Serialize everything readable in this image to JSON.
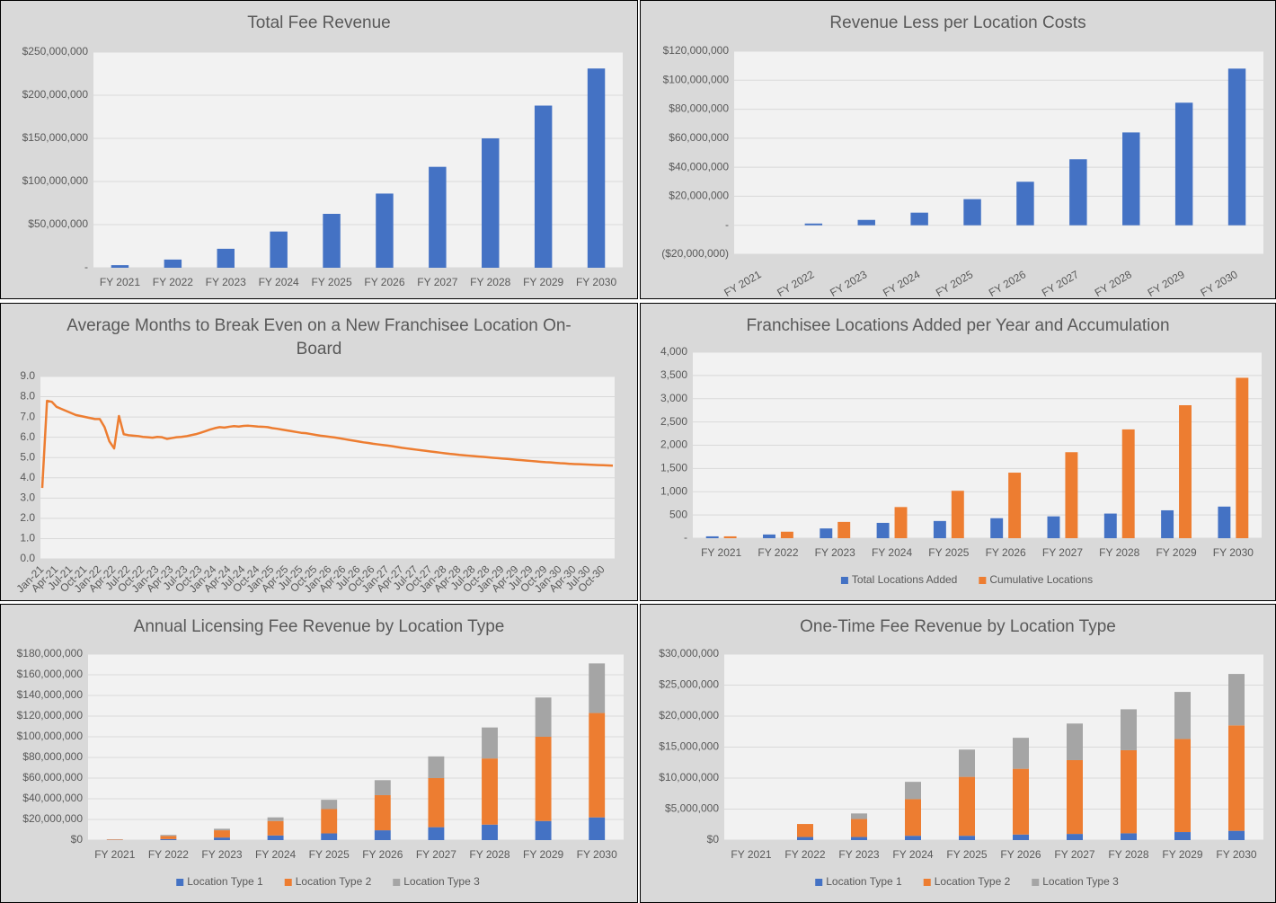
{
  "chart_data": [
    {
      "type": "bar",
      "title": "Total Fee Revenue",
      "categories": [
        "FY 2021",
        "FY 2022",
        "FY 2023",
        "FY 2024",
        "FY 2025",
        "FY 2026",
        "FY 2027",
        "FY 2028",
        "FY 2029",
        "FY 2030"
      ],
      "values": [
        3000000,
        9500000,
        22000000,
        42000000,
        62500000,
        86000000,
        117000000,
        150000000,
        188000000,
        231000000
      ],
      "color": "#4472c4",
      "ylim": [
        0,
        250000000
      ],
      "yticks": [
        {
          "value": 0,
          "label": "-"
        },
        {
          "value": 50000000,
          "label": "$50,000,000"
        },
        {
          "value": 100000000,
          "label": "$100,000,000"
        },
        {
          "value": 150000000,
          "label": "$150,000,000"
        },
        {
          "value": 200000000,
          "label": "$200,000,000"
        },
        {
          "value": 250000000,
          "label": "$250,000,000"
        }
      ],
      "grid": true
    },
    {
      "type": "bar",
      "title": "Revenue Less per Location Costs",
      "categories": [
        "FY 2021",
        "FY 2022",
        "FY 2023",
        "FY 2024",
        "FY 2025",
        "FY 2026",
        "FY 2027",
        "FY 2028",
        "FY 2029",
        "FY 2030"
      ],
      "values": [
        0,
        1200000,
        3700000,
        8700000,
        18000000,
        30000000,
        45500000,
        64000000,
        84500000,
        108000000
      ],
      "color": "#4472c4",
      "ylim": [
        -20000000,
        120000000
      ],
      "yticks": [
        {
          "value": -20000000,
          "label": "($20,000,000)"
        },
        {
          "value": 0,
          "label": "-"
        },
        {
          "value": 20000000,
          "label": "$20,000,000"
        },
        {
          "value": 40000000,
          "label": "$40,000,000"
        },
        {
          "value": 60000000,
          "label": "$60,000,000"
        },
        {
          "value": 80000000,
          "label": "$80,000,000"
        },
        {
          "value": 100000000,
          "label": "$100,000,000"
        },
        {
          "value": 120000000,
          "label": "$120,000,000"
        }
      ],
      "grid": true
    },
    {
      "type": "line",
      "title": "Average Months to Break Even on a New Franchisee Location On-Board",
      "categories": [
        "Jan-21",
        null,
        null,
        "Apr-21",
        null,
        null,
        "Jul-21",
        null,
        null,
        "Oct-21",
        null,
        null,
        "Jan-22",
        null,
        null,
        "Apr-22",
        null,
        null,
        "Jul-22",
        null,
        null,
        "Oct-22",
        null,
        null,
        "Jan-23",
        null,
        null,
        "Apr-23",
        null,
        null,
        "Jul-23",
        null,
        null,
        "Oct-23",
        null,
        null,
        "Jan-24",
        null,
        null,
        "Apr-24",
        null,
        null,
        "Jul-24",
        null,
        null,
        "Oct-24",
        null,
        null,
        "Jan-25",
        null,
        null,
        "Apr-25",
        null,
        null,
        "Jul-25",
        null,
        null,
        "Oct-25",
        null,
        null,
        "Jan-26",
        null,
        null,
        "Apr-26",
        null,
        null,
        "Jul-26",
        null,
        null,
        "Oct-26",
        null,
        null,
        "Jan-27",
        null,
        null,
        "Apr-27",
        null,
        null,
        "Jul-27",
        null,
        null,
        "Oct-27",
        null,
        null,
        "Jan-28",
        null,
        null,
        "Apr-28",
        null,
        null,
        "Jul-28",
        null,
        null,
        "Oct-28",
        null,
        null,
        "Jan-29",
        null,
        null,
        "Apr-29",
        null,
        null,
        "Jul-29",
        null,
        null,
        "Oct-29",
        null,
        null,
        "Jan-30",
        null,
        null,
        "Apr-30",
        null,
        null,
        "Jul-30",
        null,
        null,
        "Oct-30",
        null,
        null
      ],
      "values": [
        3.5,
        7.8,
        7.75,
        7.5,
        7.4,
        7.3,
        7.2,
        7.1,
        7.05,
        7.0,
        6.95,
        6.9,
        6.9,
        6.5,
        5.8,
        5.45,
        7.05,
        6.15,
        6.1,
        6.08,
        6.06,
        6.02,
        6.0,
        5.98,
        6.02,
        6.0,
        5.92,
        5.96,
        6.0,
        6.02,
        6.05,
        6.1,
        6.15,
        6.22,
        6.3,
        6.38,
        6.45,
        6.5,
        6.48,
        6.52,
        6.55,
        6.53,
        6.56,
        6.57,
        6.55,
        6.53,
        6.52,
        6.5,
        6.45,
        6.42,
        6.38,
        6.34,
        6.3,
        6.26,
        6.22,
        6.2,
        6.16,
        6.12,
        6.08,
        6.05,
        6.02,
        5.99,
        5.95,
        5.91,
        5.87,
        5.83,
        5.79,
        5.75,
        5.72,
        5.68,
        5.65,
        5.62,
        5.59,
        5.56,
        5.52,
        5.48,
        5.45,
        5.42,
        5.39,
        5.36,
        5.33,
        5.3,
        5.27,
        5.24,
        5.21,
        5.18,
        5.16,
        5.13,
        5.11,
        5.09,
        5.07,
        5.05,
        5.03,
        5.01,
        4.99,
        4.97,
        4.95,
        4.93,
        4.91,
        4.89,
        4.87,
        4.85,
        4.83,
        4.81,
        4.79,
        4.77,
        4.76,
        4.74,
        4.72,
        4.71,
        4.69,
        4.68,
        4.67,
        4.66,
        4.65,
        4.64,
        4.63,
        4.62,
        4.61,
        4.6
      ],
      "color": "#ed7d31",
      "ylim": [
        0,
        9
      ],
      "yticks": [
        {
          "value": 0,
          "label": "0.0"
        },
        {
          "value": 1,
          "label": "1.0"
        },
        {
          "value": 2,
          "label": "2.0"
        },
        {
          "value": 3,
          "label": "3.0"
        },
        {
          "value": 4,
          "label": "4.0"
        },
        {
          "value": 5,
          "label": "5.0"
        },
        {
          "value": 6,
          "label": "6.0"
        },
        {
          "value": 7,
          "label": "7.0"
        },
        {
          "value": 8,
          "label": "8.0"
        },
        {
          "value": 9,
          "label": "9.0"
        }
      ],
      "grid": true
    },
    {
      "type": "bar",
      "title": "Franchisee Locations Added per Year and Accumulation",
      "categories": [
        "FY 2021",
        "FY 2022",
        "FY 2023",
        "FY 2024",
        "FY 2025",
        "FY 2026",
        "FY 2027",
        "FY 2028",
        "FY 2029",
        "FY 2030"
      ],
      "series": [
        {
          "name": "Total Locations Added",
          "color": "#4472c4",
          "values": [
            40,
            80,
            210,
            330,
            370,
            430,
            470,
            530,
            600,
            680
          ]
        },
        {
          "name": "Cumulative Locations",
          "color": "#ed7d31",
          "values": [
            40,
            140,
            350,
            670,
            1020,
            1410,
            1850,
            2340,
            2860,
            3450
          ]
        }
      ],
      "ylim": [
        0,
        4000
      ],
      "yticks": [
        {
          "value": 0,
          "label": "-"
        },
        500,
        {
          "value": 1000,
          "label": "1,000"
        },
        {
          "value": 1500,
          "label": "1,500"
        },
        {
          "value": 2000,
          "label": "2,000"
        },
        {
          "value": 2500,
          "label": "2,500"
        },
        {
          "value": 3000,
          "label": "3,000"
        },
        {
          "value": 3500,
          "label": "3,500"
        },
        {
          "value": 4000,
          "label": "4,000"
        }
      ],
      "grid": true,
      "legend": "bottom"
    },
    {
      "type": "bar",
      "stacked": true,
      "title": "Annual Licensing Fee Revenue by Location Type",
      "categories": [
        "FY 2021",
        "FY 2022",
        "FY 2023",
        "FY 2024",
        "FY 2025",
        "FY 2026",
        "FY 2027",
        "FY 2028",
        "FY 2029",
        "FY 2030"
      ],
      "series": [
        {
          "name": "Location Type 1",
          "color": "#4472c4",
          "values": [
            200000,
            1000000,
            2500000,
            4500000,
            6500000,
            9500000,
            12500000,
            15000000,
            18500000,
            22000000
          ]
        },
        {
          "name": "Location Type 2",
          "color": "#ed7d31",
          "values": [
            500000,
            3000000,
            7000000,
            14000000,
            23500000,
            34000000,
            47500000,
            64000000,
            81500000,
            101000000
          ]
        },
        {
          "name": "Location Type 3",
          "color": "#a5a5a5",
          "values": [
            100000,
            1000000,
            1500000,
            3500000,
            9000000,
            14500000,
            21000000,
            30000000,
            38000000,
            48000000
          ]
        }
      ],
      "ylim": [
        0,
        180000000
      ],
      "yticks": [
        {
          "value": 0,
          "label": "$0"
        },
        {
          "value": 20000000,
          "label": "$20,000,000"
        },
        {
          "value": 40000000,
          "label": "$40,000,000"
        },
        {
          "value": 60000000,
          "label": "$60,000,000"
        },
        {
          "value": 80000000,
          "label": "$80,000,000"
        },
        {
          "value": 100000000,
          "label": "$100,000,000"
        },
        {
          "value": 120000000,
          "label": "$120,000,000"
        },
        {
          "value": 140000000,
          "label": "$140,000,000"
        },
        {
          "value": 160000000,
          "label": "$160,000,000"
        },
        {
          "value": 180000000,
          "label": "$180,000,000"
        }
      ],
      "grid": true,
      "legend": "bottom"
    },
    {
      "type": "bar",
      "stacked": true,
      "title": "One-Time Fee Revenue by Location Type",
      "categories": [
        "FY 2021",
        "FY 2022",
        "FY 2023",
        "FY 2024",
        "FY 2025",
        "FY 2026",
        "FY 2027",
        "FY 2028",
        "FY 2029",
        "FY 2030"
      ],
      "series": [
        {
          "name": "Location Type 1",
          "color": "#4472c4",
          "values": [
            0,
            500000,
            500000,
            700000,
            700000,
            900000,
            1000000,
            1100000,
            1300000,
            1500000
          ]
        },
        {
          "name": "Location Type 2",
          "color": "#ed7d31",
          "values": [
            0,
            2100000,
            2900000,
            5900000,
            9500000,
            10600000,
            11900000,
            13400000,
            15000000,
            17000000
          ]
        },
        {
          "name": "Location Type 3",
          "color": "#a5a5a5",
          "values": [
            0,
            0,
            900000,
            2800000,
            4400000,
            5000000,
            5900000,
            6600000,
            7600000,
            8300000
          ]
        }
      ],
      "ylim": [
        0,
        30000000
      ],
      "yticks": [
        {
          "value": 0,
          "label": "$0"
        },
        {
          "value": 5000000,
          "label": "$5,000,000"
        },
        {
          "value": 10000000,
          "label": "$10,000,000"
        },
        {
          "value": 15000000,
          "label": "$15,000,000"
        },
        {
          "value": 20000000,
          "label": "$20,000,000"
        },
        {
          "value": 25000000,
          "label": "$25,000,000"
        },
        {
          "value": 30000000,
          "label": "$30,000,000"
        }
      ],
      "grid": true,
      "legend": "bottom"
    }
  ]
}
